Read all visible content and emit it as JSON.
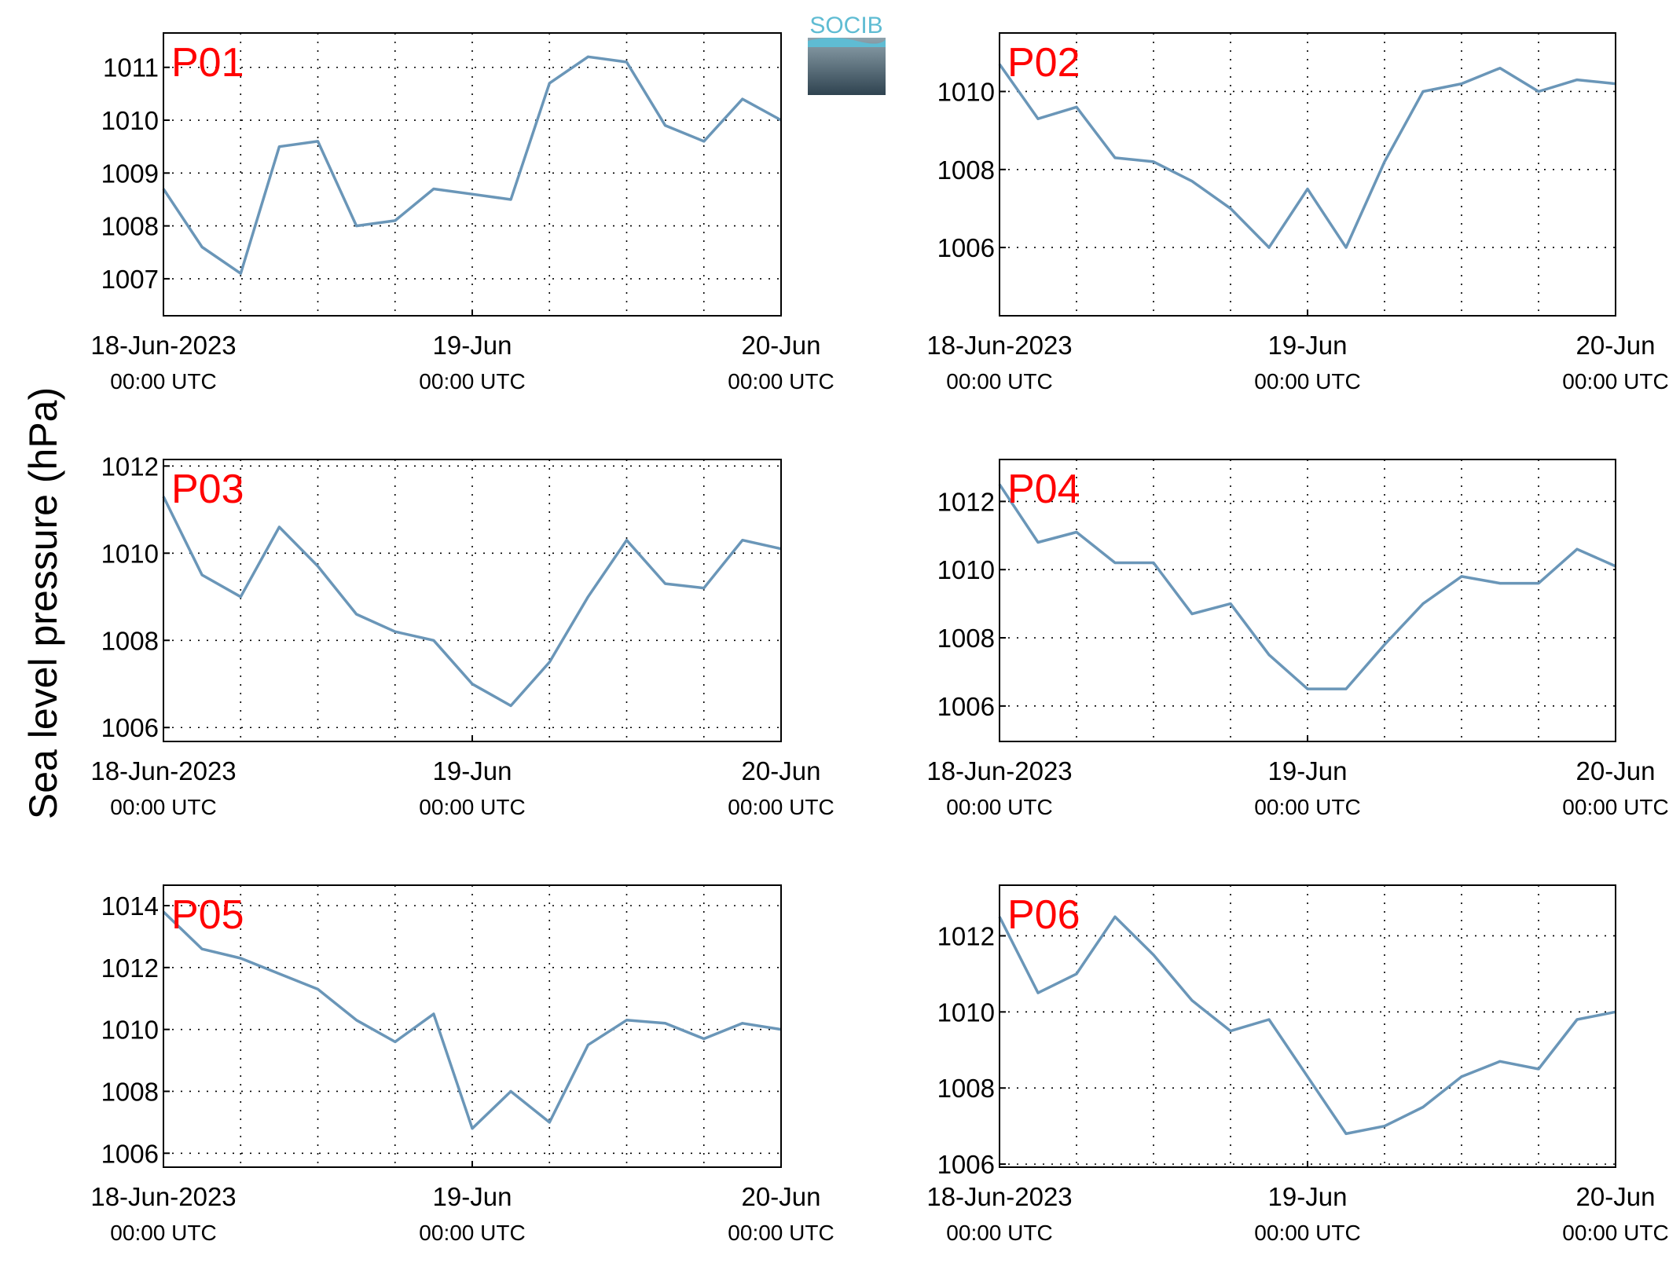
{
  "ylabel": "Sea level pressure (hPa)",
  "logo": "SOCIB",
  "chart_data": [
    {
      "type": "line",
      "title": "P01",
      "color": "#6a96b8",
      "grid": true,
      "x": [
        "2023-06-18T00:00",
        "2023-06-18T03:00",
        "2023-06-18T06:00",
        "2023-06-18T09:00",
        "2023-06-18T12:00",
        "2023-06-18T15:00",
        "2023-06-18T18:00",
        "2023-06-18T21:00",
        "2023-06-19T00:00",
        "2023-06-19T03:00",
        "2023-06-19T06:00",
        "2023-06-19T09:00",
        "2023-06-19T12:00",
        "2023-06-19T15:00",
        "2023-06-19T18:00",
        "2023-06-19T21:00",
        "2023-06-20T00:00"
      ],
      "values": [
        1008.7,
        1007.6,
        1007.1,
        1009.5,
        1009.6,
        1008.0,
        1008.1,
        1008.7,
        1008.6,
        1008.5,
        1010.7,
        1011.2,
        1011.1,
        1009.9,
        1009.6,
        1010.4,
        1010.0
      ],
      "xlim": [
        "2023-06-18T00:00",
        "2023-06-20T00:00"
      ],
      "xticks": [
        {
          "value": "2023-06-18T00:00",
          "label": "18-Jun-2023",
          "sublabel": "00:00 UTC"
        },
        {
          "value": "2023-06-19T00:00",
          "label": "19-Jun",
          "sublabel": "00:00 UTC"
        },
        {
          "value": "2023-06-20T00:00",
          "label": "20-Jun",
          "sublabel": "00:00 UTC"
        }
      ],
      "xgrid": [
        "2023-06-18T06:00",
        "2023-06-18T12:00",
        "2023-06-18T18:00",
        "2023-06-19T06:00",
        "2023-06-19T12:00",
        "2023-06-19T18:00"
      ],
      "ylim": [
        1006.3,
        1011.65
      ],
      "yticks": [
        1007,
        1008,
        1009,
        1010,
        1011
      ]
    },
    {
      "type": "line",
      "title": "P02",
      "color": "#6a96b8",
      "grid": true,
      "x": [
        "2023-06-18T00:00",
        "2023-06-18T03:00",
        "2023-06-18T06:00",
        "2023-06-18T09:00",
        "2023-06-18T12:00",
        "2023-06-18T15:00",
        "2023-06-18T18:00",
        "2023-06-18T21:00",
        "2023-06-19T00:00",
        "2023-06-19T03:00",
        "2023-06-19T06:00",
        "2023-06-19T09:00",
        "2023-06-19T12:00",
        "2023-06-19T15:00",
        "2023-06-19T18:00",
        "2023-06-19T21:00",
        "2023-06-20T00:00"
      ],
      "values": [
        1010.7,
        1009.3,
        1009.6,
        1008.3,
        1008.2,
        1007.7,
        1007.0,
        1006.0,
        1007.5,
        1006.0,
        1008.2,
        1010.0,
        1010.2,
        1010.6,
        1010.0,
        1010.3,
        1010.2
      ],
      "xlim": [
        "2023-06-18T00:00",
        "2023-06-20T00:00"
      ],
      "xticks": [
        {
          "value": "2023-06-18T00:00",
          "label": "18-Jun-2023",
          "sublabel": "00:00 UTC"
        },
        {
          "value": "2023-06-19T00:00",
          "label": "19-Jun",
          "sublabel": "00:00 UTC"
        },
        {
          "value": "2023-06-20T00:00",
          "label": "20-Jun",
          "sublabel": "00:00 UTC"
        }
      ],
      "xgrid": [
        "2023-06-18T06:00",
        "2023-06-18T12:00",
        "2023-06-18T18:00",
        "2023-06-19T06:00",
        "2023-06-19T12:00",
        "2023-06-19T18:00"
      ],
      "ylim": [
        1004.25,
        1011.5
      ],
      "yticks": [
        1006,
        1008,
        1010
      ]
    },
    {
      "type": "line",
      "title": "P03",
      "color": "#6a96b8",
      "grid": true,
      "x": [
        "2023-06-18T00:00",
        "2023-06-18T03:00",
        "2023-06-18T06:00",
        "2023-06-18T09:00",
        "2023-06-18T12:00",
        "2023-06-18T15:00",
        "2023-06-18T18:00",
        "2023-06-18T21:00",
        "2023-06-19T00:00",
        "2023-06-19T03:00",
        "2023-06-19T06:00",
        "2023-06-19T09:00",
        "2023-06-19T12:00",
        "2023-06-19T15:00",
        "2023-06-19T18:00",
        "2023-06-19T21:00",
        "2023-06-20T00:00"
      ],
      "values": [
        1011.3,
        1009.5,
        1009.0,
        1010.6,
        1009.7,
        1008.6,
        1008.2,
        1008.0,
        1007.0,
        1006.5,
        1007.5,
        1009.0,
        1010.3,
        1009.3,
        1009.2,
        1010.3,
        1010.1
      ],
      "xlim": [
        "2023-06-18T00:00",
        "2023-06-20T00:00"
      ],
      "xticks": [
        {
          "value": "2023-06-18T00:00",
          "label": "18-Jun-2023",
          "sublabel": "00:00 UTC"
        },
        {
          "value": "2023-06-19T00:00",
          "label": "19-Jun",
          "sublabel": "00:00 UTC"
        },
        {
          "value": "2023-06-20T00:00",
          "label": "20-Jun",
          "sublabel": "00:00 UTC"
        }
      ],
      "xgrid": [
        "2023-06-18T06:00",
        "2023-06-18T12:00",
        "2023-06-18T18:00",
        "2023-06-19T06:00",
        "2023-06-19T12:00",
        "2023-06-19T18:00"
      ],
      "ylim": [
        1005.68,
        1012.15
      ],
      "yticks": [
        1006,
        1008,
        1010,
        1012
      ]
    },
    {
      "type": "line",
      "title": "P04",
      "color": "#6a96b8",
      "grid": true,
      "x": [
        "2023-06-18T00:00",
        "2023-06-18T03:00",
        "2023-06-18T06:00",
        "2023-06-18T09:00",
        "2023-06-18T12:00",
        "2023-06-18T15:00",
        "2023-06-18T18:00",
        "2023-06-18T21:00",
        "2023-06-19T00:00",
        "2023-06-19T03:00",
        "2023-06-19T06:00",
        "2023-06-19T09:00",
        "2023-06-19T12:00",
        "2023-06-19T15:00",
        "2023-06-19T18:00",
        "2023-06-19T21:00",
        "2023-06-20T00:00"
      ],
      "values": [
        1012.5,
        1010.8,
        1011.1,
        1010.2,
        1010.2,
        1008.7,
        1009.0,
        1007.5,
        1006.5,
        1006.5,
        1007.8,
        1009.0,
        1009.8,
        1009.6,
        1009.6,
        1010.6,
        1010.1
      ],
      "xlim": [
        "2023-06-18T00:00",
        "2023-06-20T00:00"
      ],
      "xticks": [
        {
          "value": "2023-06-18T00:00",
          "label": "18-Jun-2023",
          "sublabel": "00:00 UTC"
        },
        {
          "value": "2023-06-19T00:00",
          "label": "19-Jun",
          "sublabel": "00:00 UTC"
        },
        {
          "value": "2023-06-20T00:00",
          "label": "20-Jun",
          "sublabel": "00:00 UTC"
        }
      ],
      "xgrid": [
        "2023-06-18T06:00",
        "2023-06-18T12:00",
        "2023-06-18T18:00",
        "2023-06-19T06:00",
        "2023-06-19T12:00",
        "2023-06-19T18:00"
      ],
      "ylim": [
        1004.96,
        1013.23
      ],
      "yticks": [
        1006,
        1008,
        1010,
        1012
      ]
    },
    {
      "type": "line",
      "title": "P05",
      "color": "#6a96b8",
      "grid": true,
      "x": [
        "2023-06-18T00:00",
        "2023-06-18T03:00",
        "2023-06-18T06:00",
        "2023-06-18T09:00",
        "2023-06-18T12:00",
        "2023-06-18T15:00",
        "2023-06-18T18:00",
        "2023-06-18T21:00",
        "2023-06-19T00:00",
        "2023-06-19T03:00",
        "2023-06-19T06:00",
        "2023-06-19T09:00",
        "2023-06-19T12:00",
        "2023-06-19T15:00",
        "2023-06-19T18:00",
        "2023-06-19T21:00",
        "2023-06-20T00:00"
      ],
      "values": [
        1013.8,
        1012.6,
        1012.3,
        1011.8,
        1011.3,
        1010.3,
        1009.6,
        1010.5,
        1006.8,
        1008.0,
        1007.0,
        1009.5,
        1010.3,
        1010.2,
        1009.7,
        1010.2,
        1010.0
      ],
      "xlim": [
        "2023-06-18T00:00",
        "2023-06-20T00:00"
      ],
      "xticks": [
        {
          "value": "2023-06-18T00:00",
          "label": "18-Jun-2023",
          "sublabel": "00:00 UTC"
        },
        {
          "value": "2023-06-19T00:00",
          "label": "19-Jun",
          "sublabel": "00:00 UTC"
        },
        {
          "value": "2023-06-20T00:00",
          "label": "20-Jun",
          "sublabel": "00:00 UTC"
        }
      ],
      "xgrid": [
        "2023-06-18T06:00",
        "2023-06-18T12:00",
        "2023-06-18T18:00",
        "2023-06-19T06:00",
        "2023-06-19T12:00",
        "2023-06-19T18:00"
      ],
      "ylim": [
        1005.55,
        1014.66
      ],
      "yticks": [
        1006,
        1008,
        1010,
        1012,
        1014
      ]
    },
    {
      "type": "line",
      "title": "P06",
      "color": "#6a96b8",
      "grid": true,
      "x": [
        "2023-06-18T00:00",
        "2023-06-18T03:00",
        "2023-06-18T06:00",
        "2023-06-18T09:00",
        "2023-06-18T12:00",
        "2023-06-18T15:00",
        "2023-06-18T18:00",
        "2023-06-18T21:00",
        "2023-06-19T00:00",
        "2023-06-19T03:00",
        "2023-06-19T06:00",
        "2023-06-19T09:00",
        "2023-06-19T12:00",
        "2023-06-19T15:00",
        "2023-06-19T18:00",
        "2023-06-19T21:00",
        "2023-06-20T00:00"
      ],
      "values": [
        1012.5,
        1010.5,
        1011.0,
        1012.5,
        1011.5,
        1010.3,
        1009.5,
        1009.8,
        1008.3,
        1006.8,
        1007.0,
        1007.5,
        1008.3,
        1008.7,
        1008.5,
        1009.8,
        1010.0
      ],
      "xlim": [
        "2023-06-18T00:00",
        "2023-06-20T00:00"
      ],
      "xticks": [
        {
          "value": "2023-06-18T00:00",
          "label": "18-Jun-2023",
          "sublabel": "00:00 UTC"
        },
        {
          "value": "2023-06-19T00:00",
          "label": "19-Jun",
          "sublabel": "00:00 UTC"
        },
        {
          "value": "2023-06-20T00:00",
          "label": "20-Jun",
          "sublabel": "00:00 UTC"
        }
      ],
      "xgrid": [
        "2023-06-18T06:00",
        "2023-06-18T12:00",
        "2023-06-18T18:00",
        "2023-06-19T06:00",
        "2023-06-19T12:00",
        "2023-06-19T18:00"
      ],
      "ylim": [
        1005.92,
        1013.33
      ],
      "yticks": [
        1006,
        1008,
        1010,
        1012
      ]
    }
  ]
}
